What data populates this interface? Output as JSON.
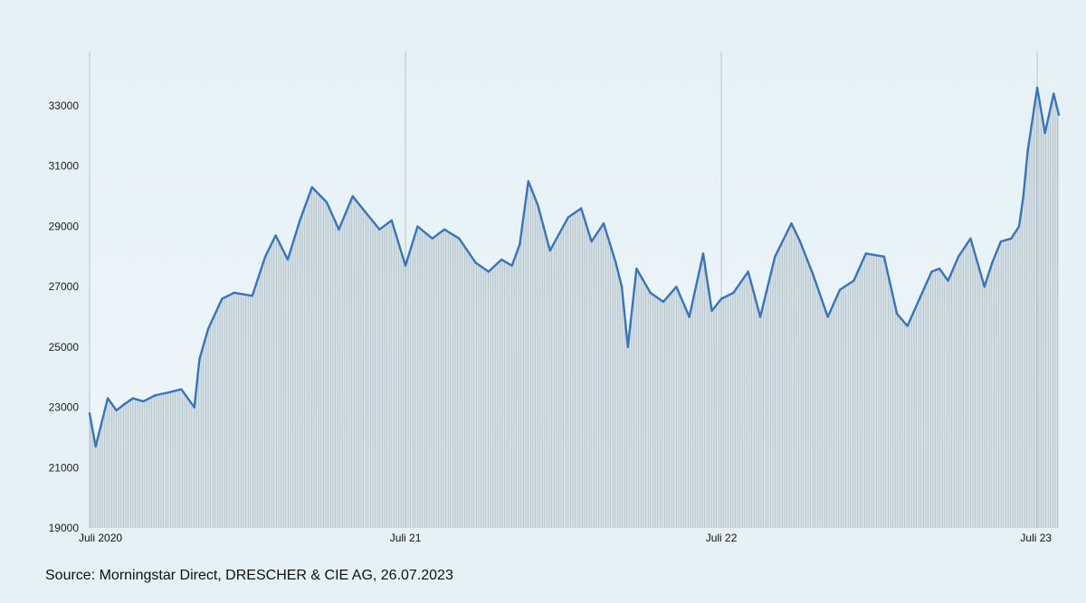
{
  "chart_data": {
    "type": "area",
    "title": "",
    "xlabel": "",
    "ylabel": "",
    "ylim": [
      19000,
      34800
    ],
    "xlim": [
      "2020-07-01",
      "2023-07-26"
    ],
    "yticks": [
      19000,
      21000,
      23000,
      25000,
      27000,
      29000,
      31000,
      33000
    ],
    "ytick_labels": [
      "19000",
      "21000",
      "23000",
      "25000",
      "27000",
      "29000",
      "31000",
      "33000"
    ],
    "xticks": [
      {
        "date": "2020-07-01",
        "label": "Juli 2020"
      },
      {
        "date": "2021-07-01",
        "label": "Juli 21"
      },
      {
        "date": "2022-07-01",
        "label": "Juli 22"
      },
      {
        "date": "2023-07-01",
        "label": "Juli 23"
      }
    ],
    "grid": {
      "vertical": true,
      "horizontal": false
    },
    "legend": "none",
    "colors": {
      "line": "#3a74bb",
      "fill": "#c2d3da",
      "background": "#e5f1f6",
      "grid": "#b9c4c9"
    },
    "series": [
      {
        "x": [
          "2020-07-01",
          "2020-07-08",
          "2020-07-15",
          "2020-07-22",
          "2020-08-01",
          "2020-08-10",
          "2020-08-20",
          "2020-09-01",
          "2020-09-15",
          "2020-10-01",
          "2020-10-15",
          "2020-10-30",
          "2020-11-05",
          "2020-11-15",
          "2020-12-01",
          "2020-12-15",
          "2021-01-05",
          "2021-01-20",
          "2021-02-01",
          "2021-02-15",
          "2021-03-01",
          "2021-03-15",
          "2021-04-01",
          "2021-04-15",
          "2021-05-01",
          "2021-05-15",
          "2021-06-01",
          "2021-06-15",
          "2021-07-01",
          "2021-07-15",
          "2021-08-01",
          "2021-08-15",
          "2021-09-01",
          "2021-09-20",
          "2021-10-05",
          "2021-10-20",
          "2021-11-01",
          "2021-11-10",
          "2021-11-20",
          "2021-12-01",
          "2021-12-15",
          "2022-01-05",
          "2022-01-20",
          "2022-02-01",
          "2022-02-15",
          "2022-03-01",
          "2022-03-08",
          "2022-03-15",
          "2022-03-25",
          "2022-04-10",
          "2022-04-25",
          "2022-05-10",
          "2022-05-25",
          "2022-06-10",
          "2022-06-20",
          "2022-07-01",
          "2022-07-15",
          "2022-08-01",
          "2022-08-15",
          "2022-09-01",
          "2022-09-20",
          "2022-09-30",
          "2022-10-15",
          "2022-11-01",
          "2022-11-15",
          "2022-12-01",
          "2022-12-15",
          "2023-01-05",
          "2023-01-20",
          "2023-02-01",
          "2023-02-15",
          "2023-03-01",
          "2023-03-10",
          "2023-03-20",
          "2023-04-01",
          "2023-04-15",
          "2023-05-01",
          "2023-05-10",
          "2023-05-20",
          "2023-06-01",
          "2023-06-10",
          "2023-06-15",
          "2023-06-20",
          "2023-07-01",
          "2023-07-10",
          "2023-07-20",
          "2023-07-26"
        ],
        "y": [
          22800,
          21700,
          22500,
          23300,
          22900,
          23100,
          23300,
          23200,
          23400,
          23500,
          23600,
          23000,
          24600,
          25600,
          26600,
          26800,
          26700,
          28000,
          28700,
          27900,
          29200,
          30300,
          29800,
          28900,
          30000,
          29500,
          28900,
          29200,
          27700,
          29000,
          28600,
          28900,
          28600,
          27800,
          27500,
          27900,
          27700,
          28400,
          30500,
          29700,
          28200,
          29300,
          29600,
          28500,
          29100,
          27800,
          27000,
          25000,
          27600,
          26800,
          26500,
          27000,
          26000,
          28100,
          26200,
          26600,
          26800,
          27500,
          26000,
          28000,
          29100,
          28500,
          27400,
          26000,
          26900,
          27200,
          28100,
          28000,
          26100,
          25700,
          26600,
          27500,
          27600,
          27200,
          28000,
          28600,
          27000,
          27800,
          28500,
          28600,
          29000,
          30000,
          31500,
          33600,
          32100,
          33400,
          32700
        ]
      }
    ],
    "annotations": [
      "Source: Morningstar Direct, DRESCHER & CIE AG, 26.07.2023"
    ]
  }
}
